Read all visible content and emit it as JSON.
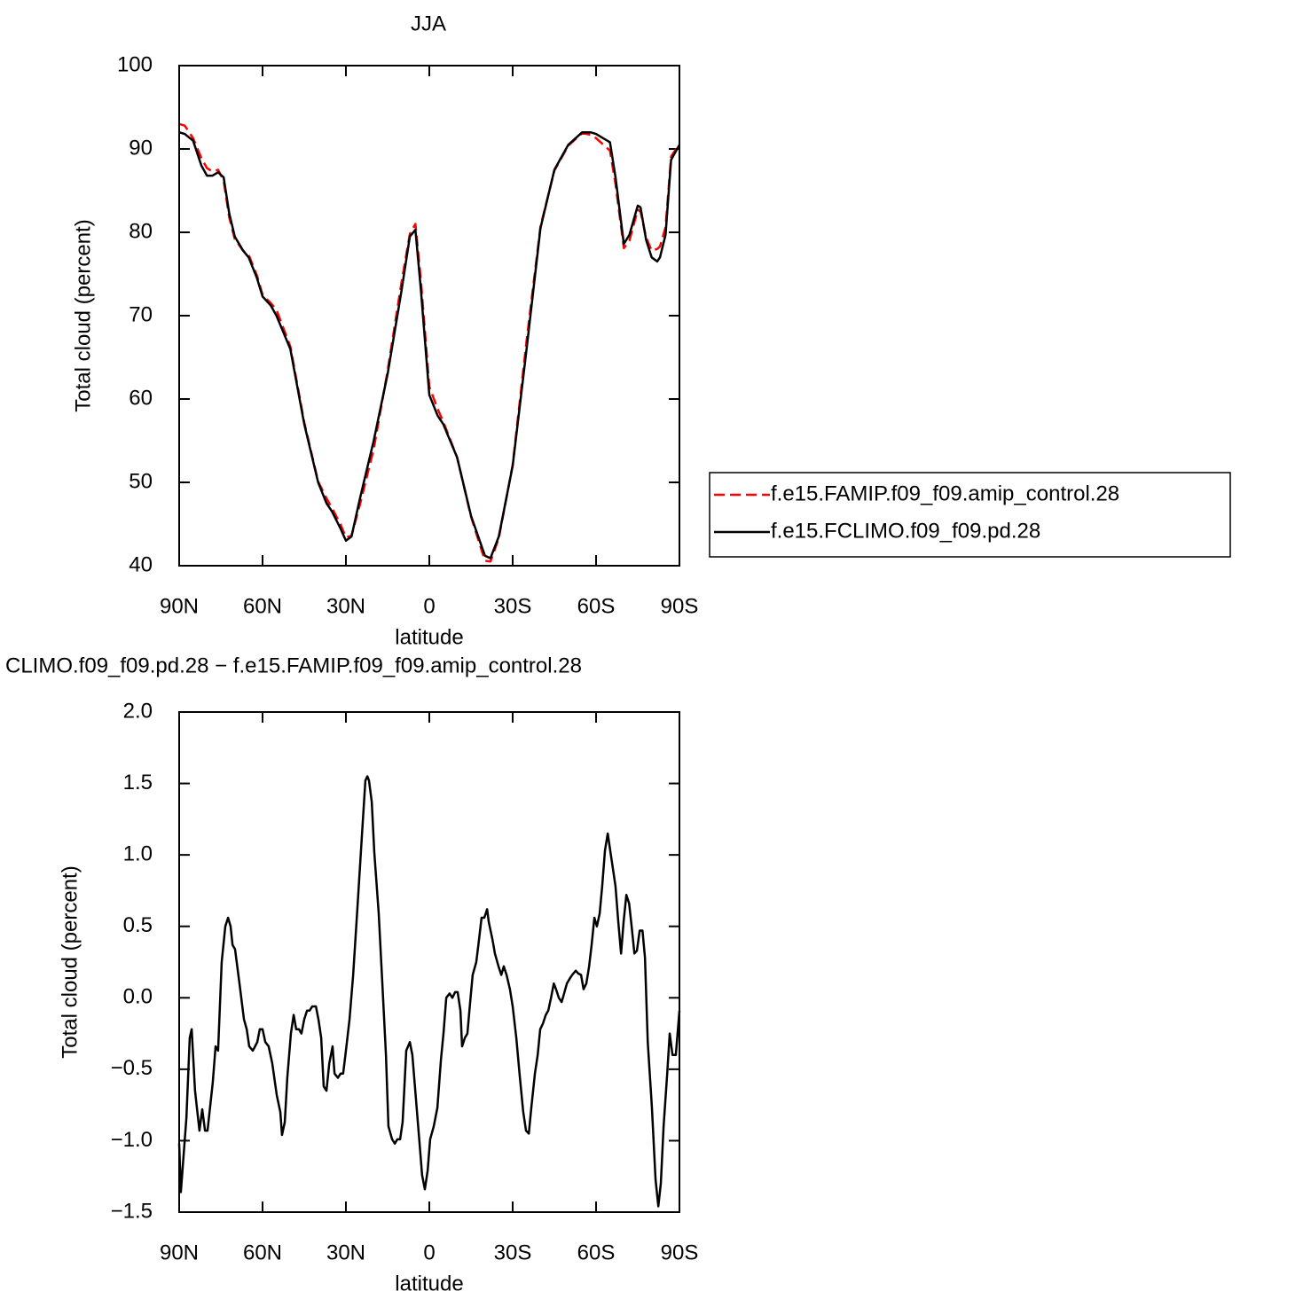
{
  "chart_data": [
    {
      "type": "line",
      "title": "JJA",
      "xlabel": "latitude",
      "ylabel": "Total cloud (percent)",
      "xlim": [
        90,
        -90
      ],
      "ylim": [
        40,
        100
      ],
      "xticks": [
        {
          "value": 90,
          "label": "90N"
        },
        {
          "value": 60,
          "label": "60N"
        },
        {
          "value": 30,
          "label": "30N"
        },
        0,
        {
          "value": -30,
          "label": "30S"
        },
        {
          "value": -60,
          "label": "60S"
        },
        {
          "value": -90,
          "label": "90S"
        }
      ],
      "yticks": [
        40,
        50,
        60,
        70,
        80,
        90,
        100
      ],
      "grid": false,
      "legend": "right",
      "x": [
        90,
        88,
        85,
        82,
        80,
        78,
        76,
        74,
        72,
        70,
        67,
        65,
        62,
        60,
        57,
        55,
        50,
        45,
        40,
        37,
        35,
        32,
        30,
        28,
        25,
        20,
        15,
        10,
        7,
        5,
        3,
        0,
        -3,
        -5,
        -10,
        -15,
        -20,
        -22,
        -25,
        -30,
        -35,
        -40,
        -45,
        -50,
        -55,
        -58,
        -60,
        -65,
        -67,
        -70,
        -72,
        -75,
        -76,
        -78,
        -80,
        -82,
        -83,
        -85,
        -87,
        -90
      ],
      "series": [
        {
          "name": "f.e15.FAMIP.f09_f09.amip_control.28",
          "color": "#ff0000",
          "line_style": "dashed",
          "values": [
            93,
            92.8,
            91.3,
            88.9,
            87.7,
            87.3,
            87.5,
            86.2,
            81.8,
            79.2,
            77.8,
            77.3,
            74.8,
            72.5,
            71.5,
            70.7,
            66.3,
            57.2,
            50.1,
            48.1,
            46.9,
            45,
            43.4,
            43.6,
            47.3,
            54,
            63.4,
            74,
            79.8,
            81,
            74.1,
            61.5,
            58.8,
            57.3,
            53,
            45.9,
            40.6,
            40.5,
            43.3,
            52.1,
            67,
            80.7,
            87.4,
            90.4,
            91.9,
            91.7,
            91.3,
            89.8,
            85.8,
            78.1,
            79,
            82.7,
            82.5,
            79.4,
            77.8,
            78,
            78.3,
            80.6,
            89.1,
            90.6
          ]
        },
        {
          "name": "f.e15.FCLIMO.f09_f09.pd.28",
          "color": "#000000",
          "line_style": "solid",
          "values": [
            92,
            91.8,
            91,
            88,
            86.8,
            86.8,
            87.2,
            86.6,
            82.3,
            79.5,
            77.8,
            77,
            74.5,
            72.3,
            71.2,
            70,
            66,
            57,
            50,
            47.5,
            46.5,
            44.5,
            43,
            43.5,
            48,
            55,
            63,
            73,
            79.5,
            80.3,
            73,
            60.5,
            58,
            57,
            53,
            46,
            41.2,
            40.9,
            43.5,
            52,
            66,
            80.5,
            87.5,
            90.5,
            92,
            92,
            91.8,
            90.8,
            86.6,
            78.6,
            79.7,
            83.2,
            83,
            79.1,
            77,
            76.5,
            77,
            79.7,
            88.7,
            90.5
          ]
        }
      ]
    },
    {
      "type": "line",
      "title": "CLIMO.f09_f09.pd.28 − f.e15.FAMIP.f09_f09.amip_control.28",
      "xlabel": "latitude",
      "ylabel": "Total cloud (percent)",
      "xlim": [
        90,
        -90
      ],
      "ylim": [
        -1.5,
        2.0
      ],
      "xticks": [
        {
          "value": 90,
          "label": "90N"
        },
        {
          "value": 60,
          "label": "60N"
        },
        {
          "value": 30,
          "label": "30N"
        },
        0,
        {
          "value": -30,
          "label": "30S"
        },
        {
          "value": -60,
          "label": "60S"
        },
        {
          "value": -90,
          "label": "90S"
        }
      ],
      "yticks": [
        {
          "value": -1.5,
          "label": "−1.5"
        },
        {
          "value": -1.0,
          "label": "−1.0"
        },
        {
          "value": -0.5,
          "label": "−0.5"
        },
        {
          "value": 0,
          "label": "0.0"
        },
        {
          "value": 0.5,
          "label": "0.5"
        },
        {
          "value": 1.0,
          "label": "1.0"
        },
        {
          "value": 1.5,
          "label": "1.5"
        },
        {
          "value": 2.0,
          "label": "2.0"
        }
      ],
      "grid": false,
      "x": [
        90,
        89.4,
        87.4,
        86.2,
        85.5,
        84.3,
        82.7,
        81.7,
        80.7,
        79.8,
        77.9,
        76.9,
        76,
        74.7,
        73.4,
        72.4,
        71.5,
        70.8,
        69.9,
        68.3,
        66.7,
        65.7,
        64.8,
        63.5,
        61.9,
        61,
        60,
        59,
        57.8,
        56.5,
        54.9,
        53.6,
        53,
        52,
        51.1,
        49.8,
        48.8,
        47.9,
        46.9,
        46,
        45,
        44,
        43.1,
        42.1,
        40.8,
        39.9,
        38.9,
        38,
        37,
        36,
        34.8,
        34.1,
        32.9,
        31.9,
        31,
        30,
        28.7,
        27.4,
        25.8,
        24.2,
        23,
        22.3,
        21.7,
        20.7,
        19.8,
        18.2,
        16.9,
        15.6,
        14.7,
        13.4,
        12.4,
        11.5,
        10.5,
        9.6,
        8.3,
        7,
        6.1,
        4.8,
        3.5,
        2.6,
        1.6,
        0.6,
        -0.3,
        -1.6,
        -2.9,
        -4.2,
        -5.1,
        -6.1,
        -7.3,
        -8.3,
        -9.3,
        -10.2,
        -11.2,
        -11.8,
        -12.8,
        -13.7,
        -14.7,
        -15.6,
        -16.9,
        -17.9,
        -18.8,
        -19.8,
        -20.8,
        -21.4,
        -22.7,
        -23.6,
        -24.9,
        -25.9,
        -26.8,
        -27.8,
        -29,
        -30,
        -31.3,
        -32.6,
        -33.8,
        -34.8,
        -35.8,
        -36.7,
        -38,
        -39,
        -39.9,
        -40.9,
        -41.9,
        -42.8,
        -43.8,
        -44.8,
        -45.6,
        -46.6,
        -47.6,
        -48.5,
        -49.5,
        -50.4,
        -51.4,
        -52.7,
        -53.6,
        -54.6,
        -55.5,
        -56.5,
        -57.5,
        -58.4,
        -59.4,
        -60.3,
        -61.3,
        -62.2,
        -63.2,
        -64.2,
        -65.1,
        -66.1,
        -67,
        -68,
        -69,
        -69.9,
        -70.9,
        -71.9,
        -72.8,
        -73.8,
        -74.7,
        -75.7,
        -76.7,
        -77.6,
        -78.6,
        -80.1,
        -81.4,
        -82.4,
        -83.3,
        -84.3,
        -85.6,
        -86.5,
        -87.5,
        -88.7,
        -90
      ],
      "series": [
        {
          "color": "#000000",
          "line_style": "solid",
          "values": [
            -1.02,
            -1.36,
            -0.84,
            -0.28,
            -0.22,
            -0.65,
            -0.93,
            -0.78,
            -0.93,
            -0.93,
            -0.59,
            -0.34,
            -0.37,
            0.25,
            0.5,
            0.56,
            0.5,
            0.37,
            0.34,
            0.1,
            -0.15,
            -0.22,
            -0.34,
            -0.37,
            -0.31,
            -0.22,
            -0.22,
            -0.31,
            -0.34,
            -0.46,
            -0.68,
            -0.8,
            -0.96,
            -0.87,
            -0.56,
            -0.25,
            -0.12,
            -0.22,
            -0.22,
            -0.25,
            -0.15,
            -0.09,
            -0.09,
            -0.06,
            -0.06,
            -0.15,
            -0.28,
            -0.62,
            -0.65,
            -0.46,
            -0.34,
            -0.53,
            -0.56,
            -0.53,
            -0.53,
            -0.37,
            -0.15,
            0.16,
            0.65,
            1.15,
            1.52,
            1.55,
            1.52,
            1.37,
            1.02,
            0.59,
            0.1,
            -0.4,
            -0.9,
            -0.99,
            -1.02,
            -0.99,
            -0.99,
            -0.87,
            -0.37,
            -0.31,
            -0.4,
            -0.71,
            -1.02,
            -1.24,
            -1.34,
            -1.21,
            -0.99,
            -0.9,
            -0.77,
            -0.43,
            -0.25,
            0,
            0.03,
            0,
            0.04,
            0.04,
            -0.09,
            -0.34,
            -0.28,
            -0.25,
            -0.03,
            0.16,
            0.25,
            0.41,
            0.56,
            0.56,
            0.62,
            0.53,
            0.41,
            0.31,
            0.22,
            0.16,
            0.22,
            0.16,
            0.06,
            -0.06,
            -0.28,
            -0.56,
            -0.8,
            -0.93,
            -0.95,
            -0.77,
            -0.53,
            -0.4,
            -0.22,
            -0.18,
            -0.12,
            -0.09,
            0,
            0.1,
            0.06,
            0,
            -0.03,
            0.03,
            0.1,
            0.13,
            0.16,
            0.19,
            0.17,
            0.16,
            0.06,
            0.1,
            0.22,
            0.37,
            0.56,
            0.5,
            0.59,
            0.78,
            1.03,
            1.15,
            1.03,
            0.9,
            0.78,
            0.53,
            0.31,
            0.53,
            0.72,
            0.66,
            0.5,
            0.31,
            0.33,
            0.47,
            0.47,
            0.28,
            -0.31,
            -0.77,
            -1.27,
            -1.46,
            -1.3,
            -0.9,
            -0.53,
            -0.25,
            -0.4,
            -0.4,
            -0.09
          ]
        }
      ]
    }
  ]
}
